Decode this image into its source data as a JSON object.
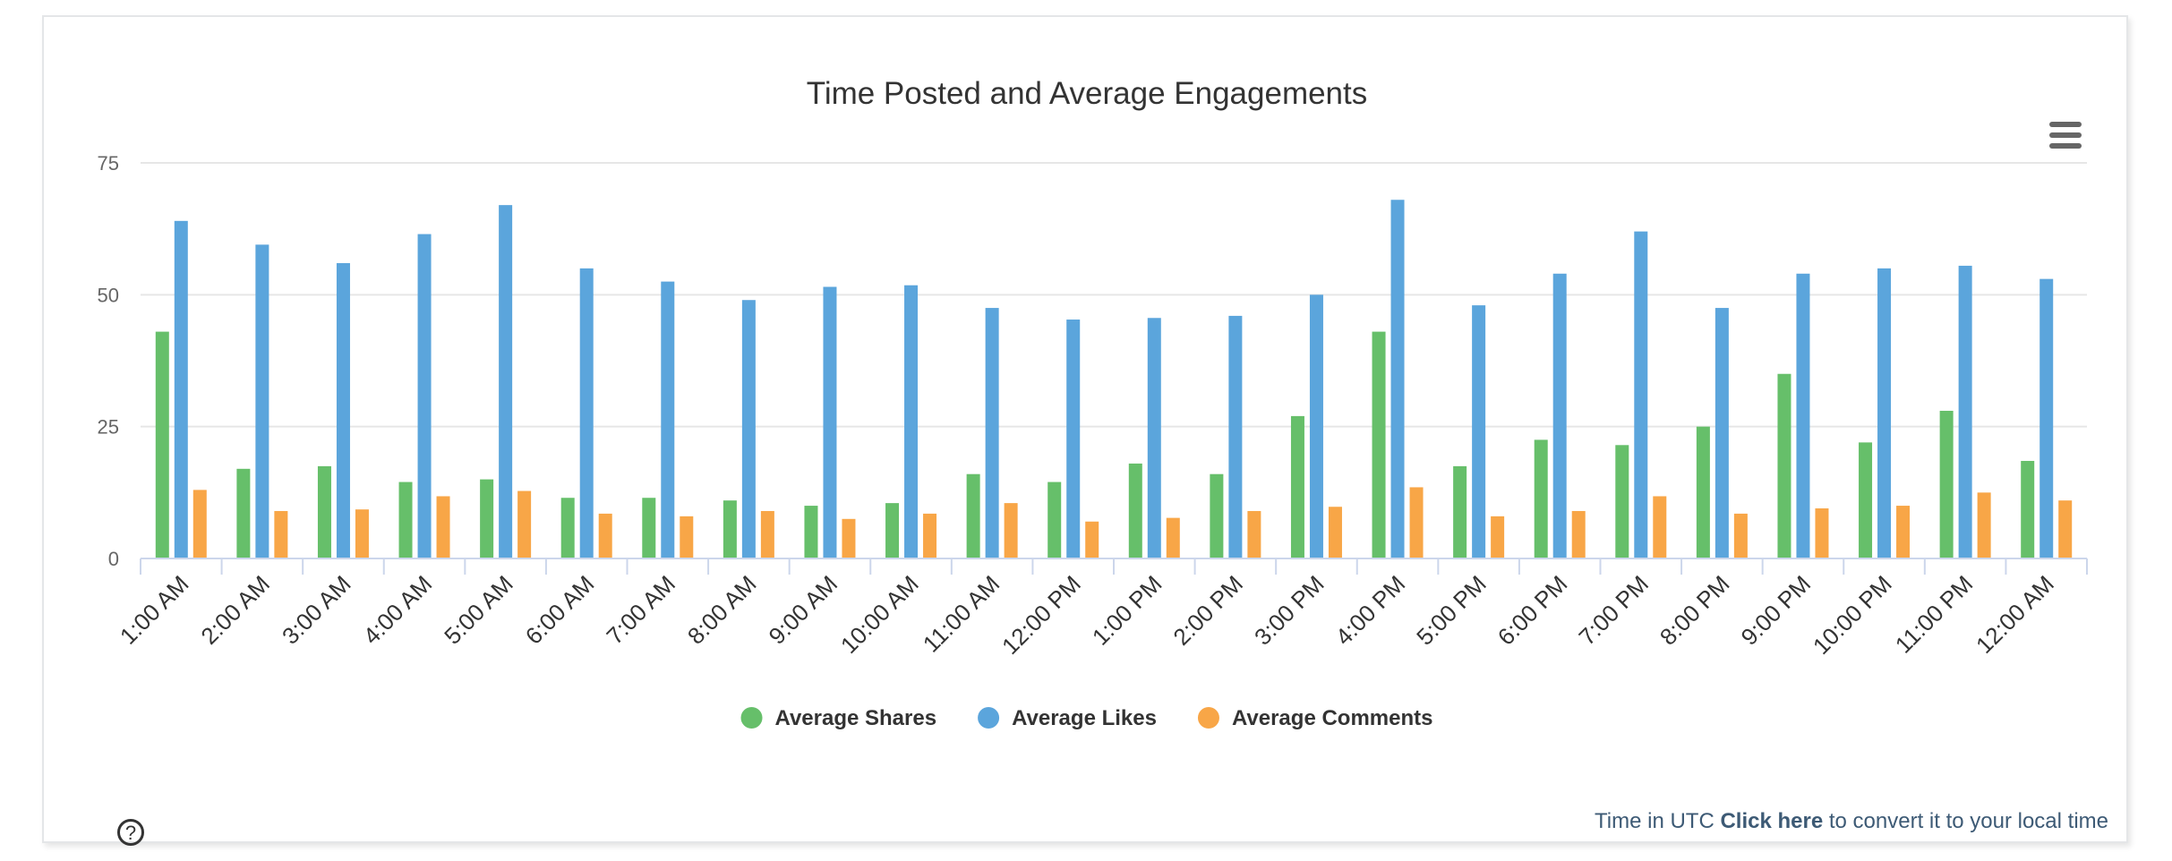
{
  "footer": {
    "prefix": "Time in UTC",
    "link": "Click here",
    "suffix": "to convert it to your local time"
  },
  "help": {
    "label": "?"
  },
  "chart_data": {
    "type": "bar",
    "title": "Time Posted and Average Engagements",
    "xlabel": "",
    "ylabel": "",
    "ylim": [
      0,
      75
    ],
    "yticks": [
      0,
      25,
      50,
      75
    ],
    "grid": true,
    "legend_position": "bottom-center",
    "categories": [
      "1:00 AM",
      "2:00 AM",
      "3:00 AM",
      "4:00 AM",
      "5:00 AM",
      "6:00 AM",
      "7:00 AM",
      "8:00 AM",
      "9:00 AM",
      "10:00 AM",
      "11:00 AM",
      "12:00 PM",
      "1:00 PM",
      "2:00 PM",
      "3:00 PM",
      "4:00 PM",
      "5:00 PM",
      "6:00 PM",
      "7:00 PM",
      "8:00 PM",
      "9:00 PM",
      "10:00 PM",
      "11:00 PM",
      "12:00 AM"
    ],
    "series": [
      {
        "name": "Average Shares",
        "color": "#66bf6a",
        "values": [
          43,
          17,
          17.5,
          14.5,
          15,
          11.5,
          11.5,
          11,
          10,
          10.5,
          16,
          14.5,
          18,
          16,
          27,
          43,
          17.5,
          22.5,
          21.5,
          25,
          35,
          22,
          28,
          18.5
        ]
      },
      {
        "name": "Average Likes",
        "color": "#5ba5dc",
        "values": [
          64,
          59.5,
          56,
          61.5,
          67,
          55,
          52.5,
          49,
          51.5,
          51.8,
          47.5,
          45.3,
          45.6,
          46,
          50,
          68,
          48,
          54,
          62,
          47.5,
          54,
          55,
          55.5,
          53
        ]
      },
      {
        "name": "Average Comments",
        "color": "#f8a647",
        "values": [
          13,
          9,
          9.3,
          11.8,
          12.8,
          8.5,
          8,
          9,
          7.5,
          8.5,
          10.5,
          7,
          7.7,
          9,
          9.8,
          13.5,
          8,
          9,
          11.8,
          8.5,
          9.5,
          10,
          12.5,
          11
        ]
      }
    ]
  }
}
